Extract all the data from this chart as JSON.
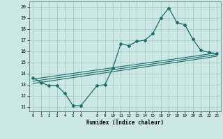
{
  "title": "",
  "xlabel": "Humidex (Indice chaleur)",
  "bg_color": "#cce8e4",
  "grid_color": "#aac8c4",
  "line_color": "#1a6b6b",
  "xlim": [
    -0.5,
    23.5
  ],
  "ylim": [
    10.6,
    20.5
  ],
  "yticks": [
    11,
    12,
    13,
    14,
    15,
    16,
    17,
    18,
    19,
    20
  ],
  "xticks": [
    0,
    1,
    2,
    3,
    4,
    5,
    6,
    8,
    9,
    10,
    11,
    12,
    13,
    14,
    15,
    16,
    17,
    18,
    19,
    20,
    21,
    22,
    23
  ],
  "line1_x": [
    0,
    1,
    2,
    3,
    4,
    5,
    6,
    8,
    9,
    10,
    11,
    12,
    13,
    14,
    15,
    16,
    17,
    18,
    19,
    20,
    21,
    22,
    23
  ],
  "line1_y": [
    13.6,
    13.2,
    12.9,
    12.9,
    12.2,
    11.1,
    11.1,
    12.9,
    13.0,
    14.5,
    16.7,
    16.5,
    16.9,
    17.0,
    17.6,
    19.0,
    19.9,
    18.6,
    18.4,
    17.1,
    16.1,
    15.9,
    15.8
  ],
  "line2_x": [
    0,
    23
  ],
  "line2_y": [
    13.5,
    15.85
  ],
  "line3_x": [
    0,
    23
  ],
  "line3_y": [
    13.3,
    15.7
  ],
  "line4_x": [
    0,
    23
  ],
  "line4_y": [
    13.1,
    15.55
  ]
}
